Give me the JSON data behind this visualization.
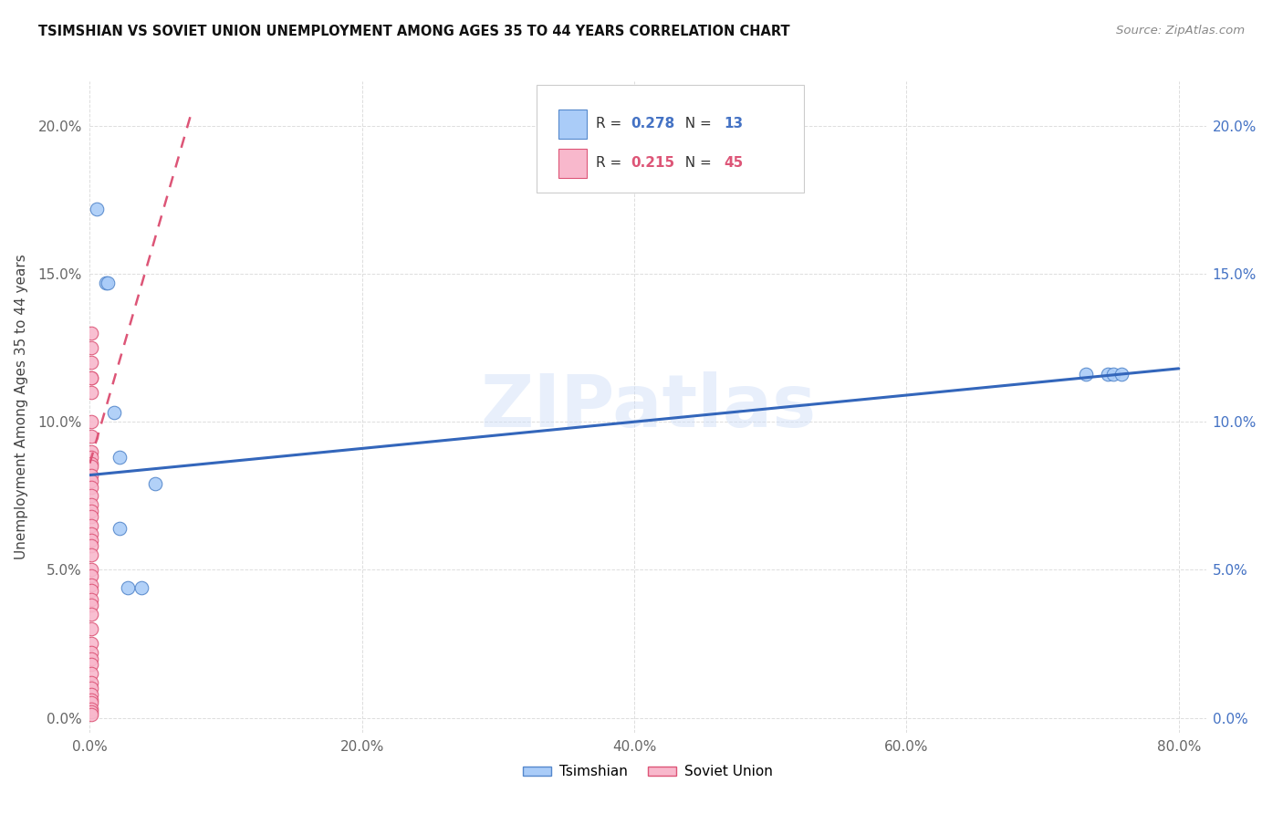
{
  "title": "TSIMSHIAN VS SOVIET UNION UNEMPLOYMENT AMONG AGES 35 TO 44 YEARS CORRELATION CHART",
  "source": "Source: ZipAtlas.com",
  "xlim": [
    0.0,
    0.82
  ],
  "ylim": [
    -0.005,
    0.215
  ],
  "tsimshian_x": [
    0.005,
    0.012,
    0.013,
    0.018,
    0.022,
    0.022,
    0.028,
    0.038,
    0.048,
    0.732,
    0.748,
    0.752,
    0.758
  ],
  "tsimshian_y": [
    0.172,
    0.147,
    0.147,
    0.103,
    0.088,
    0.064,
    0.044,
    0.044,
    0.079,
    0.116,
    0.116,
    0.116,
    0.116
  ],
  "soviet_x": [
    0.001,
    0.001,
    0.001,
    0.001,
    0.001,
    0.001,
    0.001,
    0.001,
    0.001,
    0.001,
    0.001,
    0.001,
    0.001,
    0.001,
    0.001,
    0.001,
    0.001,
    0.001,
    0.001,
    0.001,
    0.001,
    0.001,
    0.001,
    0.001,
    0.001,
    0.001,
    0.001,
    0.001,
    0.001,
    0.001,
    0.001,
    0.001,
    0.001,
    0.001,
    0.001,
    0.001,
    0.001,
    0.001,
    0.001,
    0.001,
    0.001,
    0.001,
    0.001,
    0.001,
    0.001
  ],
  "soviet_y": [
    0.13,
    0.125,
    0.12,
    0.115,
    0.115,
    0.11,
    0.1,
    0.095,
    0.09,
    0.088,
    0.086,
    0.085,
    0.082,
    0.08,
    0.078,
    0.075,
    0.072,
    0.07,
    0.068,
    0.065,
    0.062,
    0.06,
    0.058,
    0.055,
    0.05,
    0.048,
    0.045,
    0.043,
    0.04,
    0.038,
    0.035,
    0.03,
    0.025,
    0.022,
    0.02,
    0.018,
    0.015,
    0.012,
    0.01,
    0.008,
    0.006,
    0.005,
    0.003,
    0.002,
    0.001
  ],
  "tsimshian_color": "#aaccf8",
  "tsimshian_edge_color": "#5588cc",
  "soviet_color": "#f8b8cc",
  "soviet_edge_color": "#dd5577",
  "tsimshian_R": 0.278,
  "tsimshian_N": 13,
  "soviet_R": 0.215,
  "soviet_N": 45,
  "blue_line_x": [
    0.0,
    0.8
  ],
  "blue_line_y_start": 0.082,
  "blue_line_y_end": 0.118,
  "pink_line_x": [
    0.0,
    0.075
  ],
  "pink_line_y_start": 0.086,
  "pink_line_y_end": 0.205,
  "watermark": "ZIPatlas",
  "legend_labels": [
    "Tsimshian",
    "Soviet Union"
  ],
  "marker_size": 110,
  "right_axis_color": "#4472c4",
  "grid_color": "#dddddd",
  "legend_R_color_tsimshian": "#4472c4",
  "legend_N_color_tsimshian": "#4472c4",
  "legend_R_color_soviet": "#dd5577",
  "legend_N_color_soviet": "#dd5577"
}
